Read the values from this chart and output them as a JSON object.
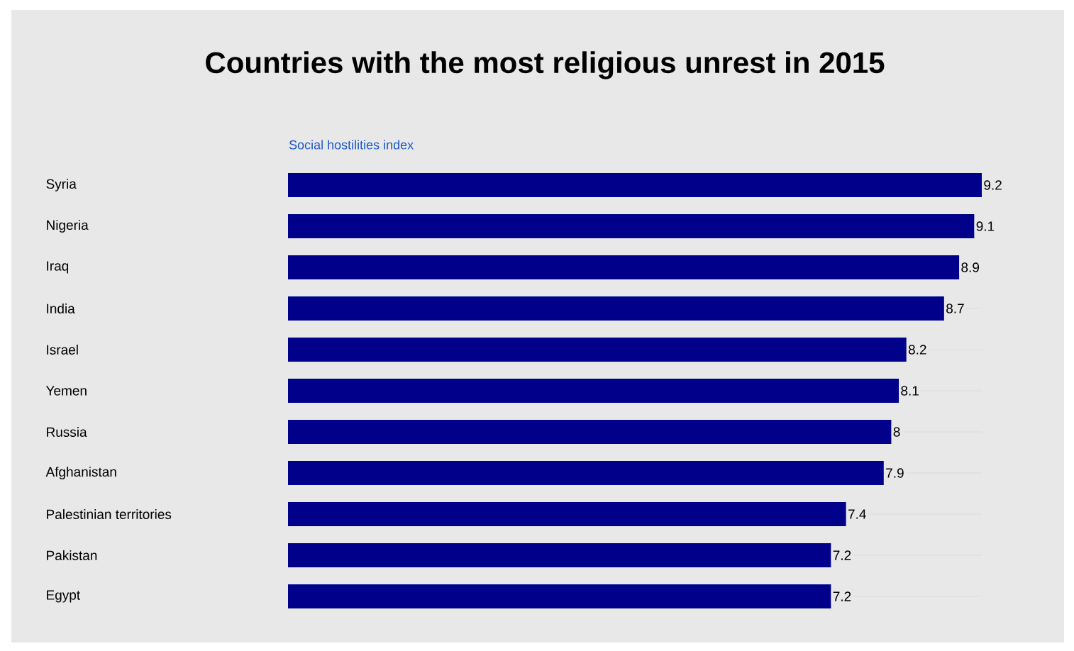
{
  "chart_data": {
    "type": "bar",
    "orientation": "horizontal",
    "title": "Countries with the most religious unrest in 2015",
    "subtitle": "Social hostilities index",
    "categories": [
      "Syria",
      "Nigeria",
      "Iraq",
      "India",
      "Israel",
      "Yemen",
      "Russia",
      "Afghanistan",
      "Palestinian territories",
      "Pakistan",
      "Egypt"
    ],
    "values": [
      9.2,
      9.1,
      8.9,
      8.7,
      8.2,
      8.1,
      8.0,
      7.9,
      7.4,
      7.2,
      7.2
    ],
    "value_labels": [
      "9.2",
      "9.1",
      "8.9",
      "8.7",
      "8.2",
      "8.1",
      "8",
      "7.9",
      "7.4",
      "7.2",
      "7.2"
    ],
    "color": "#00008b",
    "grid": "y"
  }
}
